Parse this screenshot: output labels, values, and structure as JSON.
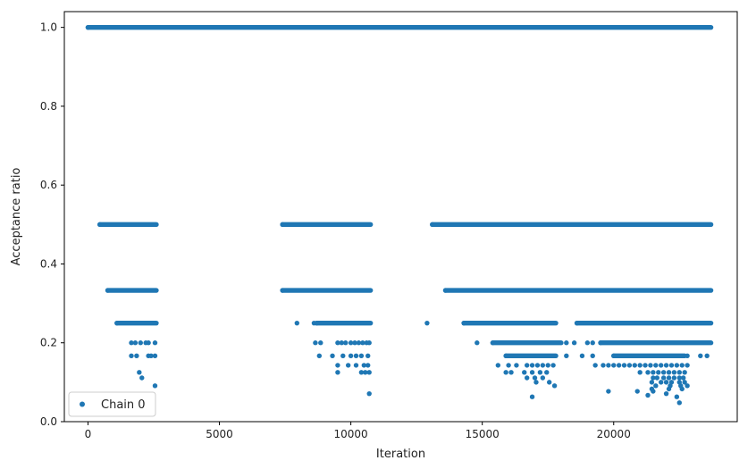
{
  "chart_data": {
    "type": "scatter",
    "title": "",
    "xlabel": "Iteration",
    "ylabel": "Acceptance ratio",
    "xlim": [
      -900,
      24700
    ],
    "ylim": [
      0.0,
      1.04
    ],
    "xticks": [
      0,
      5000,
      10000,
      15000,
      20000
    ],
    "xtick_labels": [
      "0",
      "5000",
      "10000",
      "15000",
      "20000"
    ],
    "yticks": [
      0.0,
      0.2,
      0.4,
      0.6,
      0.8,
      1.0
    ],
    "ytick_labels": [
      "0.0",
      "0.2",
      "0.4",
      "0.6",
      "0.8",
      "1.0"
    ],
    "grid": false,
    "legend": {
      "position": "lower-left",
      "entries": [
        "Chain 0"
      ]
    },
    "series_color": "#1f77b4",
    "series": [
      {
        "name": "Chain 0",
        "segments": [
          {
            "value": 1.0,
            "x_start": 0,
            "x_end": 23700
          },
          {
            "value": 0.5,
            "x_start": 450,
            "x_end": 2600
          },
          {
            "value": 0.5,
            "x_start": 7400,
            "x_end": 10750
          },
          {
            "value": 0.5,
            "x_start": 13100,
            "x_end": 23700
          },
          {
            "value": 0.333,
            "x_start": 750,
            "x_end": 2600
          },
          {
            "value": 0.333,
            "x_start": 7400,
            "x_end": 10750
          },
          {
            "value": 0.333,
            "x_start": 13600,
            "x_end": 23700
          },
          {
            "value": 0.25,
            "x_start": 1100,
            "x_end": 2600
          },
          {
            "value": 0.25,
            "x_start": 8700,
            "x_end": 10750
          },
          {
            "value": 0.25,
            "x_start": 14300,
            "x_end": 17800
          },
          {
            "value": 0.25,
            "x_start": 18600,
            "x_end": 23700
          },
          {
            "value": 0.2,
            "x_start": 15400,
            "x_end": 18000
          },
          {
            "value": 0.2,
            "x_start": 19500,
            "x_end": 23700
          },
          {
            "value": 0.167,
            "x_start": 15900,
            "x_end": 17800
          },
          {
            "value": 0.167,
            "x_start": 20000,
            "x_end": 22700
          }
        ],
        "points": [
          [
            7950,
            0.25
          ],
          [
            8600,
            0.25
          ],
          [
            12900,
            0.25
          ],
          [
            1650,
            0.2
          ],
          [
            1800,
            0.2
          ],
          [
            2000,
            0.2
          ],
          [
            2200,
            0.2
          ],
          [
            2300,
            0.2
          ],
          [
            2550,
            0.2
          ],
          [
            8650,
            0.2
          ],
          [
            8850,
            0.2
          ],
          [
            9500,
            0.2
          ],
          [
            9650,
            0.2
          ],
          [
            9800,
            0.2
          ],
          [
            10000,
            0.2
          ],
          [
            10150,
            0.2
          ],
          [
            10300,
            0.2
          ],
          [
            10450,
            0.2
          ],
          [
            10600,
            0.2
          ],
          [
            10700,
            0.2
          ],
          [
            14800,
            0.2
          ],
          [
            18200,
            0.2
          ],
          [
            18500,
            0.2
          ],
          [
            19000,
            0.2
          ],
          [
            19200,
            0.2
          ],
          [
            1650,
            0.167
          ],
          [
            1850,
            0.167
          ],
          [
            2300,
            0.167
          ],
          [
            2400,
            0.167
          ],
          [
            2550,
            0.167
          ],
          [
            8800,
            0.167
          ],
          [
            9300,
            0.167
          ],
          [
            9700,
            0.167
          ],
          [
            10000,
            0.167
          ],
          [
            10200,
            0.167
          ],
          [
            10400,
            0.167
          ],
          [
            10650,
            0.167
          ],
          [
            18200,
            0.167
          ],
          [
            18800,
            0.167
          ],
          [
            19200,
            0.167
          ],
          [
            22800,
            0.167
          ],
          [
            23300,
            0.167
          ],
          [
            23550,
            0.167
          ],
          [
            9500,
            0.143
          ],
          [
            9900,
            0.143
          ],
          [
            10200,
            0.143
          ],
          [
            10500,
            0.143
          ],
          [
            10650,
            0.143
          ],
          [
            15600,
            0.143
          ],
          [
            16000,
            0.143
          ],
          [
            16300,
            0.143
          ],
          [
            16700,
            0.143
          ],
          [
            16900,
            0.143
          ],
          [
            17100,
            0.143
          ],
          [
            17300,
            0.143
          ],
          [
            17500,
            0.143
          ],
          [
            17700,
            0.143
          ],
          [
            19300,
            0.143
          ],
          [
            19600,
            0.143
          ],
          [
            19800,
            0.143
          ],
          [
            20000,
            0.143
          ],
          [
            20200,
            0.143
          ],
          [
            20400,
            0.143
          ],
          [
            20600,
            0.143
          ],
          [
            20800,
            0.143
          ],
          [
            21000,
            0.143
          ],
          [
            21200,
            0.143
          ],
          [
            21400,
            0.143
          ],
          [
            21600,
            0.143
          ],
          [
            21800,
            0.143
          ],
          [
            22000,
            0.143
          ],
          [
            22200,
            0.143
          ],
          [
            22400,
            0.143
          ],
          [
            22600,
            0.143
          ],
          [
            22800,
            0.143
          ],
          [
            1950,
            0.125
          ],
          [
            9500,
            0.125
          ],
          [
            10400,
            0.125
          ],
          [
            10550,
            0.125
          ],
          [
            10700,
            0.125
          ],
          [
            15900,
            0.125
          ],
          [
            16100,
            0.125
          ],
          [
            16600,
            0.125
          ],
          [
            16900,
            0.125
          ],
          [
            17200,
            0.125
          ],
          [
            17450,
            0.125
          ],
          [
            21000,
            0.125
          ],
          [
            21300,
            0.125
          ],
          [
            21500,
            0.125
          ],
          [
            21700,
            0.125
          ],
          [
            21900,
            0.125
          ],
          [
            22100,
            0.125
          ],
          [
            22300,
            0.125
          ],
          [
            22500,
            0.125
          ],
          [
            22700,
            0.125
          ],
          [
            2050,
            0.111
          ],
          [
            16700,
            0.111
          ],
          [
            17000,
            0.111
          ],
          [
            17300,
            0.111
          ],
          [
            21500,
            0.111
          ],
          [
            21650,
            0.111
          ],
          [
            21900,
            0.111
          ],
          [
            22100,
            0.111
          ],
          [
            22300,
            0.111
          ],
          [
            22500,
            0.111
          ],
          [
            22650,
            0.111
          ],
          [
            17050,
            0.1
          ],
          [
            17550,
            0.1
          ],
          [
            21450,
            0.1
          ],
          [
            21800,
            0.1
          ],
          [
            22000,
            0.1
          ],
          [
            22200,
            0.1
          ],
          [
            22500,
            0.1
          ],
          [
            22700,
            0.1
          ],
          [
            2550,
            0.091
          ],
          [
            17750,
            0.091
          ],
          [
            21600,
            0.091
          ],
          [
            22150,
            0.091
          ],
          [
            22550,
            0.091
          ],
          [
            22800,
            0.091
          ],
          [
            21450,
            0.083
          ],
          [
            22100,
            0.083
          ],
          [
            22600,
            0.083
          ],
          [
            10700,
            0.071
          ],
          [
            19800,
            0.077
          ],
          [
            20900,
            0.077
          ],
          [
            21500,
            0.077
          ],
          [
            22000,
            0.071
          ],
          [
            16900,
            0.063
          ],
          [
            21300,
            0.067
          ],
          [
            22400,
            0.063
          ],
          [
            22500,
            0.048
          ]
        ]
      }
    ]
  }
}
